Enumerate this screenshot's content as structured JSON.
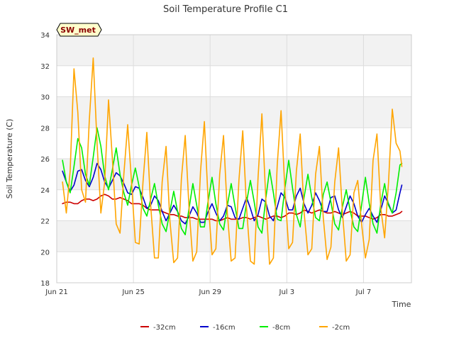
{
  "chart_data": {
    "type": "line",
    "title": "Soil Temperature Profile C1",
    "xlabel": "Time",
    "ylabel": "Soil Temperature (C)",
    "station_label": "SW_met",
    "xlim": [
      0,
      18.5
    ],
    "ylim": [
      18,
      34
    ],
    "x_ticks": [
      {
        "value": 0,
        "label": "Jun 21"
      },
      {
        "value": 4,
        "label": "Jun 25"
      },
      {
        "value": 8,
        "label": "Jun 29"
      },
      {
        "value": 12,
        "label": "Jul 3"
      },
      {
        "value": 16,
        "label": "Jul 7"
      }
    ],
    "y_ticks": [
      18,
      20,
      22,
      24,
      26,
      28,
      30,
      32,
      34
    ],
    "grid": true,
    "legend_position": "bottom",
    "x_days": [
      0.3,
      0.5,
      0.7,
      0.9,
      1.1,
      1.3,
      1.5,
      1.7,
      1.9,
      2.1,
      2.3,
      2.5,
      2.7,
      2.9,
      3.1,
      3.3,
      3.5,
      3.7,
      3.9,
      4.1,
      4.3,
      4.5,
      4.7,
      4.9,
      5.1,
      5.3,
      5.5,
      5.7,
      5.9,
      6.1,
      6.3,
      6.5,
      6.7,
      6.9,
      7.1,
      7.3,
      7.5,
      7.7,
      7.9,
      8.1,
      8.3,
      8.5,
      8.7,
      8.9,
      9.1,
      9.3,
      9.5,
      9.7,
      9.9,
      10.1,
      10.3,
      10.5,
      10.7,
      10.9,
      11.1,
      11.3,
      11.5,
      11.7,
      11.9,
      12.1,
      12.3,
      12.5,
      12.7,
      12.9,
      13.1,
      13.3,
      13.5,
      13.7,
      13.9,
      14.1,
      14.3,
      14.5,
      14.7,
      14.9,
      15.1,
      15.3,
      15.5,
      15.7,
      15.9,
      16.1,
      16.3,
      16.5,
      16.7,
      16.9,
      17.1,
      17.3,
      17.5,
      17.7,
      17.9,
      18.0
    ],
    "series": [
      {
        "name": "-32cm",
        "color": "#cc0000",
        "values": [
          23.1,
          23.2,
          23.2,
          23.1,
          23.1,
          23.3,
          23.4,
          23.4,
          23.3,
          23.4,
          23.6,
          23.7,
          23.6,
          23.4,
          23.4,
          23.5,
          23.4,
          23.3,
          23.1,
          23.1,
          23.1,
          23.0,
          22.8,
          22.7,
          22.7,
          22.7,
          22.6,
          22.5,
          22.4,
          22.4,
          22.3,
          22.3,
          22.2,
          22.2,
          22.2,
          22.1,
          22.1,
          22.1,
          22.1,
          22.1,
          22.0,
          22.0,
          22.1,
          22.2,
          22.1,
          22.1,
          22.1,
          22.2,
          22.2,
          22.1,
          22.2,
          22.3,
          22.2,
          22.1,
          22.2,
          22.3,
          22.3,
          22.2,
          22.3,
          22.5,
          22.5,
          22.4,
          22.5,
          22.7,
          22.6,
          22.5,
          22.6,
          22.7,
          22.6,
          22.5,
          22.5,
          22.6,
          22.5,
          22.4,
          22.5,
          22.6,
          22.5,
          22.3,
          22.3,
          22.3,
          22.2,
          22.1,
          22.2,
          22.4,
          22.4,
          22.3,
          22.3,
          22.4,
          22.5,
          22.6
        ]
      },
      {
        "name": "-16cm",
        "color": "#0000cc",
        "values": [
          25.2,
          24.5,
          23.9,
          24.3,
          25.2,
          25.3,
          24.6,
          24.2,
          24.8,
          25.7,
          25.3,
          24.5,
          24.1,
          24.6,
          25.1,
          24.9,
          24.4,
          23.8,
          23.7,
          24.2,
          24.1,
          23.5,
          22.8,
          23.0,
          23.6,
          23.3,
          22.6,
          22.0,
          22.5,
          23.0,
          22.6,
          22.0,
          21.8,
          22.3,
          22.9,
          22.5,
          21.9,
          21.9,
          22.6,
          23.1,
          22.5,
          22.0,
          22.3,
          23.0,
          22.9,
          22.2,
          22.1,
          22.8,
          23.5,
          22.8,
          22.0,
          22.4,
          23.4,
          23.2,
          22.3,
          22.0,
          22.9,
          23.8,
          23.5,
          22.7,
          22.7,
          23.6,
          24.1,
          23.1,
          22.5,
          23.0,
          23.8,
          23.3,
          22.6,
          22.6,
          23.5,
          23.6,
          22.7,
          22.2,
          22.9,
          23.6,
          23.1,
          22.3,
          21.9,
          22.4,
          22.8,
          22.3,
          21.9,
          22.7,
          23.6,
          23.1,
          22.5,
          22.7,
          23.8,
          24.3
        ]
      },
      {
        "name": "-8cm",
        "color": "#00ee00",
        "values": [
          25.9,
          24.5,
          23.8,
          25.5,
          27.3,
          26.7,
          25.0,
          24.3,
          26.1,
          28.0,
          26.8,
          24.9,
          24.0,
          25.3,
          26.7,
          25.0,
          23.8,
          23.0,
          24.3,
          25.4,
          24.2,
          22.8,
          22.3,
          23.4,
          24.4,
          23.0,
          21.8,
          21.3,
          22.6,
          23.9,
          22.6,
          21.5,
          21.1,
          22.8,
          24.4,
          23.0,
          21.6,
          21.6,
          23.3,
          24.8,
          23.1,
          21.8,
          21.4,
          23.0,
          24.4,
          22.9,
          21.5,
          21.5,
          23.2,
          24.6,
          23.2,
          21.6,
          21.2,
          23.4,
          25.3,
          23.8,
          22.1,
          22.0,
          24.1,
          25.9,
          24.1,
          22.4,
          21.6,
          23.5,
          25.0,
          23.5,
          22.2,
          22.0,
          23.7,
          24.5,
          23.2,
          21.8,
          21.4,
          22.9,
          24.0,
          22.7,
          21.6,
          21.3,
          23.0,
          24.8,
          23.1,
          21.8,
          21.2,
          23.1,
          24.4,
          23.0,
          22.5,
          23.8,
          25.6,
          25.7
        ]
      },
      {
        "name": "-2cm",
        "color": "#ffa500",
        "values": [
          24.5,
          22.5,
          25.2,
          31.8,
          29.0,
          24.0,
          23.2,
          28.5,
          32.5,
          27.0,
          22.5,
          24.5,
          29.8,
          26.0,
          21.8,
          21.2,
          25.0,
          28.2,
          24.5,
          20.6,
          20.5,
          24.5,
          27.7,
          23.0,
          19.6,
          19.6,
          24.5,
          26.8,
          22.0,
          19.3,
          19.6,
          24.7,
          27.5,
          22.8,
          19.4,
          20.0,
          25.2,
          28.4,
          23.2,
          19.8,
          20.2,
          25.0,
          27.5,
          22.5,
          19.4,
          19.6,
          24.6,
          27.8,
          22.8,
          19.4,
          19.2,
          24.8,
          28.9,
          23.5,
          19.2,
          19.6,
          25.6,
          29.1,
          24.0,
          20.2,
          20.6,
          25.2,
          27.6,
          22.6,
          19.8,
          20.2,
          25.0,
          26.8,
          22.2,
          19.5,
          20.3,
          24.5,
          26.7,
          22.6,
          19.4,
          19.8,
          23.8,
          24.6,
          21.8,
          19.6,
          20.8,
          25.9,
          27.6,
          22.8,
          20.9,
          24.4,
          29.2,
          27.0,
          26.5,
          25.5
        ]
      }
    ]
  }
}
